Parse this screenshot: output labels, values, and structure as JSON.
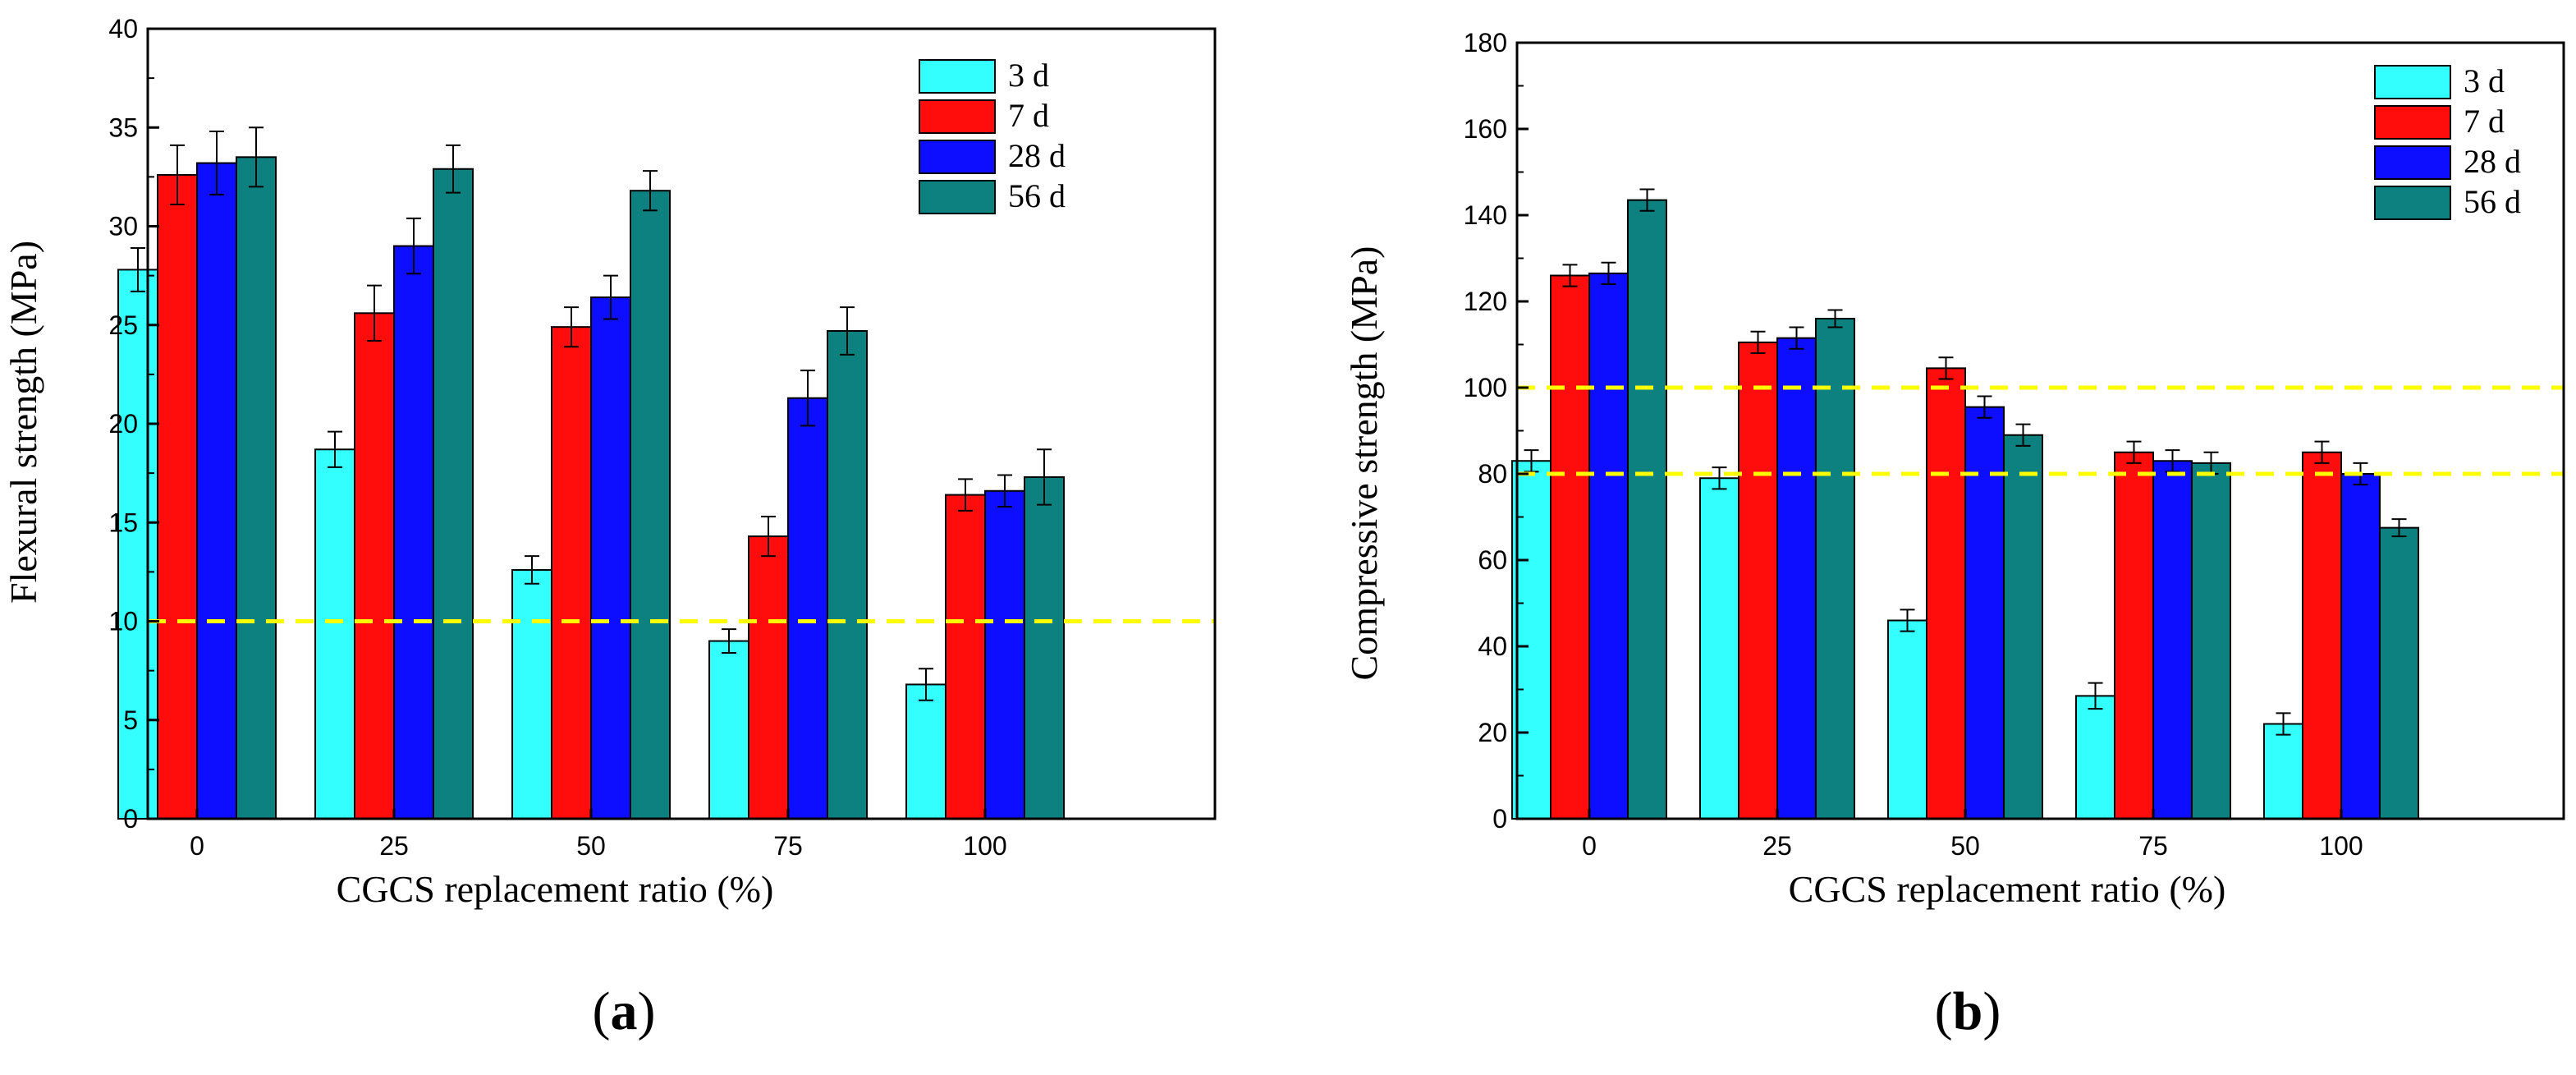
{
  "colors": {
    "series": [
      "#33ffff",
      "#ff0d0d",
      "#0d0dff",
      "#0d8080"
    ],
    "reference_line": "#ffff00"
  },
  "panels": [
    {
      "label_open": "(",
      "label_letter": "a",
      "label_close": ")"
    },
    {
      "label_open": "(",
      "label_letter": "b",
      "label_close": ")"
    }
  ],
  "chart_data": [
    {
      "type": "bar",
      "title": "",
      "xlabel": "CGCS replacement ratio (%)",
      "ylabel": "Flexural strength (MPa)",
      "categories": [
        "0",
        "25",
        "50",
        "75",
        "100"
      ],
      "ylim": [
        0,
        40
      ],
      "yticks": [
        "0",
        "5",
        "10",
        "15",
        "20",
        "25",
        "30",
        "35",
        "40"
      ],
      "legend_position": "top-right",
      "series": [
        {
          "name": "3 d",
          "values": [
            27.8,
            18.7,
            12.6,
            9.0,
            6.8
          ],
          "errors": [
            1.1,
            0.9,
            0.7,
            0.6,
            0.8
          ]
        },
        {
          "name": "7 d",
          "values": [
            32.6,
            25.6,
            24.9,
            14.3,
            16.4
          ],
          "errors": [
            1.5,
            1.4,
            1.0,
            1.0,
            0.8
          ]
        },
        {
          "name": "28 d",
          "values": [
            33.2,
            29.0,
            26.4,
            21.3,
            16.6
          ],
          "errors": [
            1.6,
            1.4,
            1.1,
            1.4,
            0.8
          ]
        },
        {
          "name": "56 d",
          "values": [
            33.5,
            32.9,
            31.8,
            24.7,
            17.3
          ],
          "errors": [
            1.5,
            1.2,
            1.0,
            1.2,
            1.4
          ]
        }
      ],
      "reference_lines": [
        10
      ]
    },
    {
      "type": "bar",
      "title": "",
      "xlabel": "CGCS replacement ratio (%)",
      "ylabel": "Compressive strength (MPa)",
      "categories": [
        "0",
        "25",
        "50",
        "75",
        "100"
      ],
      "ylim": [
        0,
        180
      ],
      "yticks": [
        "0",
        "20",
        "40",
        "60",
        "80",
        "100",
        "120",
        "140",
        "160",
        "180"
      ],
      "legend_position": "top-right",
      "series": [
        {
          "name": "3 d",
          "values": [
            83,
            79,
            46,
            28.5,
            22
          ],
          "errors": [
            2.5,
            2.5,
            2.5,
            3.0,
            2.5
          ]
        },
        {
          "name": "7 d",
          "values": [
            126,
            110.5,
            104.5,
            85,
            85
          ],
          "errors": [
            2.5,
            2.5,
            2.5,
            2.5,
            2.5
          ]
        },
        {
          "name": "28 d",
          "values": [
            126.5,
            111.5,
            95.5,
            83,
            80
          ],
          "errors": [
            2.5,
            2.5,
            2.5,
            2.5,
            2.5
          ]
        },
        {
          "name": "56 d",
          "values": [
            143.5,
            116,
            89,
            82.5,
            67.5
          ],
          "errors": [
            2.5,
            2.0,
            2.5,
            2.5,
            2.0
          ]
        }
      ],
      "reference_lines": [
        100,
        80
      ]
    }
  ]
}
